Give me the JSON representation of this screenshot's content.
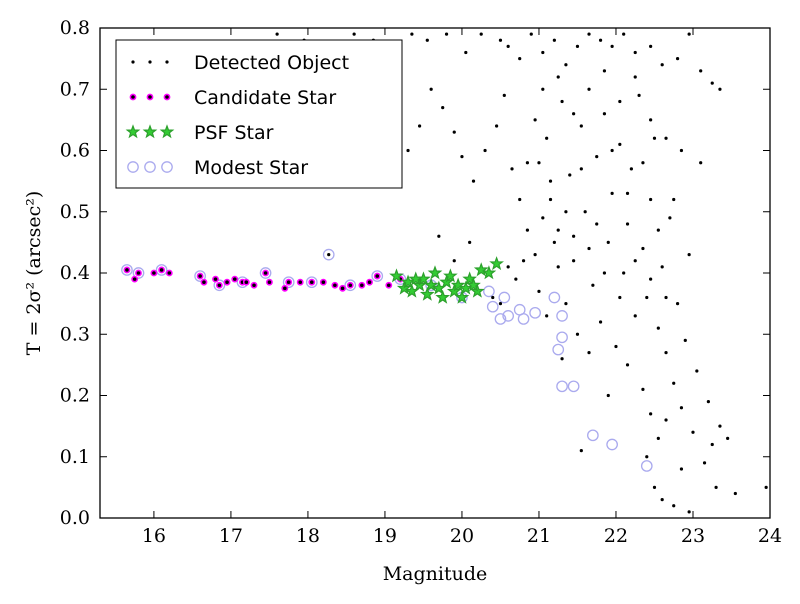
{
  "chart_data": {
    "type": "scatter",
    "xlabel": "Magnitude",
    "ylabel": "T = 2σ² (arcsec²)",
    "xlim": [
      15.3,
      24.0
    ],
    "ylim": [
      0.0,
      0.8
    ],
    "xticks": [
      "16",
      "17",
      "18",
      "19",
      "20",
      "21",
      "22",
      "23",
      "24"
    ],
    "yticks": [
      "0.0",
      "0.1",
      "0.2",
      "0.3",
      "0.4",
      "0.5",
      "0.6",
      "0.7",
      "0.8"
    ],
    "grid": false,
    "legend_position": "top-left",
    "series": [
      {
        "name": "Detected Object",
        "marker": "dot",
        "color": "#000000",
        "points": [
          [
            18.27,
            0.43
          ],
          [
            17.6,
            0.79
          ],
          [
            17.95,
            0.78
          ],
          [
            18.25,
            0.77
          ],
          [
            18.6,
            0.79
          ],
          [
            18.85,
            0.78
          ],
          [
            19.15,
            0.75
          ],
          [
            19.35,
            0.79
          ],
          [
            19.55,
            0.78
          ],
          [
            19.8,
            0.79
          ],
          [
            20.05,
            0.76
          ],
          [
            20.25,
            0.79
          ],
          [
            20.5,
            0.78
          ],
          [
            20.6,
            0.77
          ],
          [
            20.75,
            0.75
          ],
          [
            20.9,
            0.79
          ],
          [
            21.05,
            0.76
          ],
          [
            21.2,
            0.78
          ],
          [
            21.35,
            0.74
          ],
          [
            21.5,
            0.77
          ],
          [
            21.65,
            0.79
          ],
          [
            21.8,
            0.78
          ],
          [
            21.95,
            0.77
          ],
          [
            22.1,
            0.79
          ],
          [
            22.25,
            0.76
          ],
          [
            22.45,
            0.77
          ],
          [
            22.6,
            0.74
          ],
          [
            22.8,
            0.75
          ],
          [
            22.95,
            0.79
          ],
          [
            23.1,
            0.73
          ],
          [
            23.25,
            0.71
          ],
          [
            23.35,
            0.7
          ],
          [
            19.2,
            0.56
          ],
          [
            19.3,
            0.6
          ],
          [
            19.45,
            0.64
          ],
          [
            19.6,
            0.7
          ],
          [
            19.75,
            0.67
          ],
          [
            19.9,
            0.63
          ],
          [
            20.0,
            0.59
          ],
          [
            20.15,
            0.55
          ],
          [
            20.3,
            0.6
          ],
          [
            20.45,
            0.64
          ],
          [
            20.55,
            0.69
          ],
          [
            20.65,
            0.57
          ],
          [
            20.75,
            0.52
          ],
          [
            20.85,
            0.47
          ],
          [
            20.95,
            0.43
          ],
          [
            21.0,
            0.58
          ],
          [
            21.1,
            0.62
          ],
          [
            21.15,
            0.52
          ],
          [
            21.25,
            0.47
          ],
          [
            21.3,
            0.68
          ],
          [
            21.4,
            0.56
          ],
          [
            21.45,
            0.42
          ],
          [
            21.55,
            0.64
          ],
          [
            21.6,
            0.5
          ],
          [
            21.7,
            0.38
          ],
          [
            21.75,
            0.59
          ],
          [
            21.85,
            0.66
          ],
          [
            21.9,
            0.45
          ],
          [
            21.95,
            0.53
          ],
          [
            22.05,
            0.61
          ],
          [
            22.1,
            0.4
          ],
          [
            22.15,
            0.48
          ],
          [
            22.2,
            0.57
          ],
          [
            22.3,
            0.69
          ],
          [
            22.35,
            0.44
          ],
          [
            22.4,
            0.36
          ],
          [
            22.45,
            0.52
          ],
          [
            22.5,
            0.62
          ],
          [
            22.55,
            0.31
          ],
          [
            22.6,
            0.41
          ],
          [
            22.65,
            0.27
          ],
          [
            22.7,
            0.49
          ],
          [
            22.75,
            0.22
          ],
          [
            22.8,
            0.35
          ],
          [
            22.85,
            0.18
          ],
          [
            22.9,
            0.29
          ],
          [
            22.95,
            0.43
          ],
          [
            23.0,
            0.14
          ],
          [
            23.05,
            0.24
          ],
          [
            23.1,
            0.58
          ],
          [
            23.15,
            0.09
          ],
          [
            23.2,
            0.19
          ],
          [
            23.25,
            0.12
          ],
          [
            23.3,
            0.05
          ],
          [
            23.35,
            0.15
          ],
          [
            23.45,
            0.13
          ],
          [
            23.55,
            0.04
          ],
          [
            23.95,
            0.05
          ],
          [
            22.5,
            0.05
          ],
          [
            22.6,
            0.03
          ],
          [
            22.75,
            0.02
          ],
          [
            22.95,
            0.01
          ],
          [
            22.4,
            0.1
          ],
          [
            22.55,
            0.13
          ],
          [
            21.55,
            0.11
          ],
          [
            21.9,
            0.2
          ],
          [
            21.3,
            0.26
          ],
          [
            20.5,
            0.35
          ],
          [
            20.7,
            0.39
          ],
          [
            20.8,
            0.42
          ],
          [
            21.0,
            0.37
          ],
          [
            21.1,
            0.33
          ],
          [
            20.4,
            0.36
          ],
          [
            19.9,
            0.42
          ],
          [
            19.7,
            0.46
          ],
          [
            20.1,
            0.45
          ],
          [
            20.6,
            0.41
          ],
          [
            21.2,
            0.45
          ],
          [
            21.35,
            0.35
          ],
          [
            21.5,
            0.3
          ],
          [
            21.65,
            0.27
          ],
          [
            21.8,
            0.32
          ],
          [
            22.0,
            0.28
          ],
          [
            22.15,
            0.25
          ],
          [
            22.25,
            0.33
          ],
          [
            22.35,
            0.21
          ],
          [
            22.45,
            0.17
          ],
          [
            22.65,
            0.16
          ],
          [
            22.85,
            0.08
          ],
          [
            21.05,
            0.7
          ],
          [
            21.25,
            0.72
          ],
          [
            21.45,
            0.66
          ],
          [
            21.65,
            0.7
          ],
          [
            21.85,
            0.73
          ],
          [
            22.05,
            0.68
          ],
          [
            22.25,
            0.72
          ],
          [
            22.45,
            0.65
          ],
          [
            22.65,
            0.62
          ],
          [
            22.85,
            0.6
          ],
          [
            20.95,
            0.65
          ],
          [
            21.15,
            0.55
          ],
          [
            21.35,
            0.5
          ],
          [
            21.55,
            0.57
          ],
          [
            21.75,
            0.48
          ],
          [
            21.95,
            0.6
          ],
          [
            22.15,
            0.53
          ],
          [
            22.35,
            0.58
          ],
          [
            22.55,
            0.47
          ],
          [
            22.75,
            0.52
          ],
          [
            20.85,
            0.58
          ],
          [
            21.05,
            0.49
          ],
          [
            21.25,
            0.41
          ],
          [
            21.45,
            0.46
          ],
          [
            21.65,
            0.44
          ],
          [
            21.85,
            0.4
          ],
          [
            22.05,
            0.36
          ],
          [
            22.25,
            0.42
          ],
          [
            22.45,
            0.39
          ],
          [
            22.65,
            0.36
          ]
        ]
      },
      {
        "name": "Candidate Star",
        "marker": "circle",
        "color": "#ff00ff",
        "points": [
          [
            15.65,
            0.405
          ],
          [
            15.75,
            0.39
          ],
          [
            15.8,
            0.4
          ],
          [
            16.0,
            0.4
          ],
          [
            16.1,
            0.405
          ],
          [
            16.2,
            0.4
          ],
          [
            16.6,
            0.395
          ],
          [
            16.65,
            0.385
          ],
          [
            16.8,
            0.39
          ],
          [
            16.85,
            0.38
          ],
          [
            16.95,
            0.385
          ],
          [
            17.05,
            0.39
          ],
          [
            17.15,
            0.385
          ],
          [
            17.2,
            0.385
          ],
          [
            17.3,
            0.38
          ],
          [
            17.45,
            0.4
          ],
          [
            17.5,
            0.385
          ],
          [
            17.7,
            0.375
          ],
          [
            17.75,
            0.385
          ],
          [
            17.9,
            0.385
          ],
          [
            18.05,
            0.385
          ],
          [
            18.2,
            0.385
          ],
          [
            18.35,
            0.38
          ],
          [
            18.45,
            0.375
          ],
          [
            18.55,
            0.38
          ],
          [
            18.7,
            0.38
          ],
          [
            18.8,
            0.385
          ],
          [
            18.9,
            0.395
          ],
          [
            19.05,
            0.38
          ],
          [
            19.2,
            0.39
          ]
        ]
      },
      {
        "name": "PSF Star",
        "marker": "star",
        "color": "#2ca02c",
        "points": [
          [
            19.15,
            0.395
          ],
          [
            19.25,
            0.375
          ],
          [
            19.3,
            0.385
          ],
          [
            19.35,
            0.37
          ],
          [
            19.45,
            0.38
          ],
          [
            19.5,
            0.39
          ],
          [
            19.55,
            0.365
          ],
          [
            19.6,
            0.38
          ],
          [
            19.65,
            0.4
          ],
          [
            19.7,
            0.375
          ],
          [
            19.75,
            0.36
          ],
          [
            19.8,
            0.385
          ],
          [
            19.85,
            0.395
          ],
          [
            19.9,
            0.37
          ],
          [
            19.95,
            0.38
          ],
          [
            20.0,
            0.36
          ],
          [
            20.05,
            0.375
          ],
          [
            20.1,
            0.39
          ],
          [
            20.2,
            0.37
          ],
          [
            20.25,
            0.405
          ],
          [
            20.35,
            0.4
          ],
          [
            20.45,
            0.415
          ],
          [
            19.4,
            0.39
          ],
          [
            20.15,
            0.38
          ]
        ]
      },
      {
        "name": "Modest Star",
        "marker": "open-circle",
        "color": "#aaaaee",
        "points": [
          [
            15.65,
            0.405
          ],
          [
            15.8,
            0.4
          ],
          [
            16.1,
            0.405
          ],
          [
            16.6,
            0.395
          ],
          [
            16.85,
            0.38
          ],
          [
            17.15,
            0.385
          ],
          [
            17.45,
            0.4
          ],
          [
            17.75,
            0.385
          ],
          [
            18.05,
            0.385
          ],
          [
            18.27,
            0.43
          ],
          [
            18.55,
            0.38
          ],
          [
            18.9,
            0.395
          ],
          [
            19.2,
            0.39
          ],
          [
            19.6,
            0.38
          ],
          [
            20.0,
            0.36
          ],
          [
            20.35,
            0.37
          ],
          [
            20.4,
            0.345
          ],
          [
            20.5,
            0.325
          ],
          [
            20.6,
            0.33
          ],
          [
            20.75,
            0.34
          ],
          [
            20.8,
            0.325
          ],
          [
            20.95,
            0.335
          ],
          [
            21.25,
            0.275
          ],
          [
            21.3,
            0.295
          ],
          [
            21.3,
            0.33
          ],
          [
            21.3,
            0.215
          ],
          [
            21.45,
            0.215
          ],
          [
            21.7,
            0.135
          ],
          [
            21.95,
            0.12
          ],
          [
            22.4,
            0.085
          ],
          [
            20.55,
            0.36
          ],
          [
            21.2,
            0.36
          ]
        ]
      }
    ]
  }
}
